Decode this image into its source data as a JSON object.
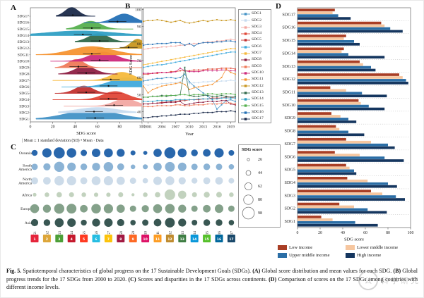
{
  "figure_title": "Fig. 5.",
  "panels": {
    "a": "A",
    "b": "B",
    "c": "C",
    "d": "D"
  },
  "sdg_labels": [
    "SDG1",
    "SDG2",
    "SDG3",
    "SDG4",
    "SDG5",
    "SDG6",
    "SDG7",
    "SDG8",
    "SDG9",
    "SDG10",
    "SDG11",
    "SDG12",
    "SDG13",
    "SDG14",
    "SDG15",
    "SDG16",
    "SDG17"
  ],
  "colors": {
    "sdg_palette": [
      "#4292c6",
      "#c6dbef",
      "#f2a8a2",
      "#e04838",
      "#c2312f",
      "#3fa9dc",
      "#f6b93b",
      "#8e2043",
      "#ef7a5a",
      "#ce2a7c",
      "#f59432",
      "#c99720",
      "#31694a",
      "#2f9fc4",
      "#56b04e",
      "#2470b5",
      "#1b2a4a"
    ],
    "sdg_icon_colors": [
      "#e5243b",
      "#dda63a",
      "#4c9f38",
      "#c5192d",
      "#ff3a21",
      "#26bde2",
      "#fcc30b",
      "#a21942",
      "#fd6925",
      "#dd1367",
      "#fd9d24",
      "#bf8b2e",
      "#3f7e44",
      "#0a97d9",
      "#56c02b",
      "#00689d",
      "#19486a"
    ],
    "continent_colors": [
      "#1e5fa8",
      "#85afd3",
      "#c9d9e8",
      "#bfd0ba",
      "#7d9c84",
      "#2e4e4a"
    ],
    "income_colors": [
      "#a93e25",
      "#f6c69f",
      "#2b6ea6",
      "#15365f"
    ]
  },
  "watermark": {
    "badge": "公",
    "text": "科学研究"
  },
  "caption_parts": [
    {
      "b": "Fig. 5."
    },
    {
      "t": " Spatiotemporal characteristics of global progress on the 17 Sustainable Development Goals (SDGs). "
    },
    {
      "b": "(A)"
    },
    {
      "t": " Global score distribution and mean values for each SDG. "
    },
    {
      "b": "(B)"
    },
    {
      "t": " Global progress trends for the 17 SDGs from 2000 to 2020. "
    },
    {
      "b": "(C)"
    },
    {
      "t": " Scores and disparities in the 17 SDGs across continents. "
    },
    {
      "b": "(D)"
    },
    {
      "t": " Comparison of scores on the 17 SDGs among countries with different income levels."
    }
  ],
  "chart_data": [
    {
      "panel": "A",
      "type": "area",
      "subtype": "ridgeline-density",
      "xlabel": "SDG score",
      "xticks": [
        0,
        20,
        40,
        60,
        80,
        100
      ],
      "xlim": [
        0,
        100
      ],
      "legend": "| Mean ± 1 standard deviation (SD)   • Mean   · Data",
      "series": [
        {
          "name": "SDG1",
          "mean": 58,
          "peak": 55,
          "lo": 5,
          "hi": 100,
          "width": 22,
          "amp": 1.0
        },
        {
          "name": "SDG2",
          "mean": 57,
          "peak": 60,
          "lo": 25,
          "hi": 95,
          "width": 18,
          "amp": 0.55
        },
        {
          "name": "SDG3",
          "mean": 75,
          "peak": 85,
          "lo": 30,
          "hi": 100,
          "width": 10,
          "amp": 0.8
        },
        {
          "name": "SDG4",
          "mean": 70,
          "peak": 76,
          "lo": 20,
          "hi": 100,
          "width": 11,
          "amp": 0.9
        },
        {
          "name": "SDG5",
          "mean": 50,
          "peak": 48,
          "lo": 22,
          "hi": 82,
          "width": 8,
          "amp": 0.8
        },
        {
          "name": "SDG6",
          "mean": 70,
          "peak": 86,
          "lo": 28,
          "hi": 100,
          "width": 14,
          "amp": 1.0
        },
        {
          "name": "SDG7",
          "mean": 72,
          "peak": 82,
          "lo": 20,
          "hi": 100,
          "width": 10,
          "amp": 0.9
        },
        {
          "name": "SDG8",
          "mean": 50,
          "peak": 49,
          "lo": 25,
          "hi": 78,
          "width": 9,
          "amp": 0.85
        },
        {
          "name": "SDG9",
          "mean": 43,
          "peak": 41,
          "lo": 22,
          "hi": 100,
          "width": 7,
          "amp": 0.9
        },
        {
          "name": "SDG10",
          "mean": 62,
          "peak": 65,
          "lo": 18,
          "hi": 100,
          "width": 12,
          "amp": 1.0
        },
        {
          "name": "SDG11",
          "mean": 55,
          "peak": 55,
          "lo": 5,
          "hi": 100,
          "width": 18,
          "amp": 0.9
        },
        {
          "name": "SDG12",
          "mean": 88,
          "peak": 96,
          "lo": 60,
          "hi": 100,
          "width": 6,
          "amp": 1.0
        },
        {
          "name": "SDG13",
          "mean": 62,
          "peak": 61,
          "lo": 40,
          "hi": 95,
          "width": 9,
          "amp": 0.9
        },
        {
          "name": "SDG14",
          "mean": 47,
          "peak": 45,
          "lo": 0,
          "hi": 100,
          "width": 30,
          "amp": 0.5
        },
        {
          "name": "SDG15",
          "mean": 55,
          "peak": 54,
          "lo": 32,
          "hi": 92,
          "width": 9,
          "amp": 0.85
        },
        {
          "name": "SDG16",
          "mean": 78,
          "peak": 84,
          "lo": 48,
          "hi": 100,
          "width": 9,
          "amp": 0.95
        },
        {
          "name": "SDG17",
          "mean": 38,
          "peak": 37,
          "lo": 23,
          "hi": 58,
          "width": 6,
          "amp": 0.95
        }
      ]
    },
    {
      "panel": "B",
      "type": "line",
      "xlabel": "Year",
      "ylabel": "SDG Score",
      "x": [
        2000,
        2001,
        2002,
        2003,
        2004,
        2005,
        2006,
        2007,
        2008,
        2009,
        2010,
        2011,
        2012,
        2013,
        2014,
        2015,
        2016,
        2017,
        2018,
        2019,
        2020
      ],
      "xticks": [
        2001,
        2004,
        2007,
        2010,
        2013,
        2016,
        2019
      ],
      "yticks": [
        40,
        50,
        60,
        70,
        80,
        90,
        100
      ],
      "ylim": [
        34,
        101
      ],
      "legend_position": "right",
      "series": [
        {
          "name": "SDG1",
          "values": [
            58,
            58.5,
            59,
            59.5,
            59.5,
            60,
            60,
            59.5,
            60,
            62,
            57.5,
            55,
            53,
            51,
            49,
            47,
            41.5,
            44,
            46.5,
            47,
            46
          ]
        },
        {
          "name": "SDG2",
          "values": [
            56,
            55.5,
            56,
            56,
            56.5,
            56.5,
            57,
            57,
            57.5,
            60,
            56.5,
            57,
            57,
            57.5,
            57.5,
            58,
            57.5,
            58,
            58,
            58.5,
            58
          ]
        },
        {
          "name": "SDG3",
          "values": [
            76.5,
            77,
            77.5,
            77.5,
            78,
            78,
            78.5,
            78.5,
            79,
            79,
            79.5,
            80,
            80,
            80.5,
            81,
            81,
            81.5,
            81.5,
            82,
            82.5,
            82
          ]
        },
        {
          "name": "SDG4",
          "values": [
            62,
            62,
            62.5,
            62.5,
            63,
            63,
            63.5,
            63.5,
            64,
            64,
            64,
            64.5,
            64.5,
            64.5,
            65,
            65,
            65,
            65.5,
            65.5,
            65.5,
            65
          ]
        },
        {
          "name": "SDG5",
          "values": [
            44.5,
            44.5,
            45,
            45,
            45.5,
            45.5,
            46,
            46,
            46.5,
            46.5,
            47,
            47,
            47,
            47.5,
            47.5,
            48,
            48,
            48,
            48.5,
            48.5,
            48
          ]
        },
        {
          "name": "SDG6",
          "values": [
            66,
            66.5,
            67,
            67.5,
            67.5,
            68,
            68.5,
            69,
            69.5,
            70,
            70.5,
            71,
            71.5,
            72,
            72.5,
            73,
            73.5,
            74,
            74.5,
            75,
            75
          ]
        },
        {
          "name": "SDG7",
          "values": [
            67.5,
            68,
            68.5,
            69,
            69.5,
            70,
            70.5,
            71,
            71.5,
            72,
            72.5,
            73,
            73.5,
            74,
            74.5,
            75,
            75.5,
            76,
            76.5,
            77,
            77
          ]
        },
        {
          "name": "SDG8",
          "values": [
            44.5,
            44.5,
            45,
            45,
            45,
            45.5,
            45.5,
            45.5,
            46,
            44,
            44.5,
            45,
            45.5,
            45.5,
            46,
            46,
            46,
            46.5,
            46.5,
            44.5,
            44
          ]
        },
        {
          "name": "SDG9",
          "values": [
            43,
            43,
            43,
            43.5,
            43.5,
            43.5,
            43.5,
            44,
            44,
            43.5,
            43.5,
            44,
            44,
            44,
            44.5,
            44.5,
            44.5,
            45,
            45,
            45,
            44.5
          ]
        },
        {
          "name": "SDG10",
          "values": [
            62.5,
            62.5,
            62.5,
            63,
            63,
            63,
            63,
            63.5,
            65.5,
            64,
            63.5,
            63.5,
            63.5,
            64,
            64,
            64,
            64,
            64.5,
            64.5,
            64,
            64
          ]
        },
        {
          "name": "SDG11",
          "values": [
            55,
            51,
            53,
            54,
            55,
            55.5,
            56,
            56.5,
            57,
            56,
            53,
            54,
            54.5,
            55,
            55.5,
            56,
            58,
            60,
            65,
            63,
            62
          ]
        },
        {
          "name": "SDG12",
          "values": [
            93,
            93.5,
            93.5,
            94,
            93.5,
            93,
            92.5,
            93,
            93.5,
            92.5,
            92,
            92.5,
            93,
            93.5,
            93,
            93.5,
            94,
            93.5,
            93.5,
            94,
            93.5
          ]
        },
        {
          "name": "SDG13",
          "values": [
            48.5,
            48.5,
            49,
            49,
            49.5,
            49,
            49.5,
            49.5,
            50,
            66,
            49.5,
            49,
            49,
            49.5,
            49.5,
            49,
            49,
            49.5,
            49,
            48.5,
            49
          ]
        },
        {
          "name": "SDG14",
          "values": [
            46,
            46,
            46,
            46.5,
            46.5,
            46.5,
            46.5,
            47,
            47,
            47,
            47,
            47,
            47.5,
            47.5,
            47.5,
            47.5,
            47.5,
            48,
            48,
            48,
            48
          ]
        },
        {
          "name": "SDG15",
          "values": [
            48.5,
            48.5,
            49,
            49,
            49,
            49.5,
            49.5,
            49.5,
            50,
            50,
            49.5,
            50,
            50,
            50,
            50.5,
            50.5,
            50,
            50.5,
            50.5,
            50.5,
            50
          ]
        },
        {
          "name": "SDG16",
          "values": [
            79,
            79.5,
            79.5,
            80,
            80,
            80,
            80.5,
            80.5,
            80.5,
            79,
            80,
            78.5,
            80,
            80.5,
            80.5,
            80.5,
            81,
            81,
            81.5,
            81.5,
            81
          ]
        },
        {
          "name": "SDG17",
          "values": [
            36.5,
            36.5,
            37,
            37,
            37.5,
            37.5,
            38,
            38,
            38.5,
            38.5,
            38.5,
            39,
            39,
            39.5,
            39.5,
            39.5,
            40,
            40,
            40,
            40.5,
            40
          ]
        }
      ]
    },
    {
      "panel": "C",
      "type": "bubble",
      "legend_title": "SDG score",
      "legend_sizes": [
        26,
        44,
        62,
        80,
        98
      ],
      "rows": [
        "Oceania",
        "South America",
        "North America",
        "Africa",
        "Europe",
        "Asia"
      ],
      "columns": [
        "SDG1",
        "SDG2",
        "SDG3",
        "SDG4",
        "SDG5",
        "SDG6",
        "SDG7",
        "SDG8",
        "SDG9",
        "SDG10",
        "SDG11",
        "SDG12",
        "SDG13",
        "SDG14",
        "SDG15",
        "SDG16",
        "SDG17"
      ],
      "values": [
        [
          52,
          78,
          92,
          80,
          55,
          72,
          75,
          68,
          45,
          38,
          70,
          92,
          75,
          58,
          65,
          78,
          50
        ],
        [
          55,
          62,
          85,
          72,
          58,
          68,
          80,
          60,
          42,
          45,
          70,
          82,
          72,
          55,
          58,
          55,
          48
        ],
        [
          60,
          65,
          80,
          78,
          60,
          75,
          78,
          70,
          55,
          48,
          72,
          75,
          62,
          52,
          60,
          65,
          50
        ],
        [
          35,
          42,
          48,
          45,
          42,
          40,
          40,
          45,
          30,
          42,
          48,
          88,
          70,
          45,
          52,
          50,
          42
        ],
        [
          75,
          68,
          85,
          82,
          65,
          80,
          78,
          70,
          55,
          62,
          75,
          80,
          68,
          55,
          65,
          72,
          55
        ],
        [
          62,
          58,
          75,
          72,
          52,
          68,
          72,
          62,
          48,
          55,
          65,
          82,
          68,
          50,
          58,
          58,
          48
        ]
      ]
    },
    {
      "panel": "D",
      "type": "bar",
      "orientation": "horizontal",
      "xlabel": "SDG score",
      "xticks": [
        0,
        20,
        40,
        60,
        80,
        100
      ],
      "xlim": [
        0,
        100
      ],
      "categories": [
        "SDG1",
        "SDG2",
        "SDG3",
        "SDG4",
        "SDG5",
        "SDG6",
        "SDG7",
        "SDG8",
        "SDG9",
        "SDG10",
        "SDG11",
        "SDG12",
        "SDG13",
        "SDG14",
        "SDG15",
        "SDG16",
        "SDG17"
      ],
      "series": [
        {
          "name": "Low income",
          "values": [
            21,
            37,
            65,
            44,
            43,
            33,
            43,
            34,
            30,
            54,
            29,
            90,
            55,
            41,
            43,
            74,
            33
          ]
        },
        {
          "name": "Lower middle income",
          "values": [
            31,
            50,
            75,
            62,
            46,
            55,
            65,
            37,
            38,
            56,
            43,
            93,
            58,
            39,
            41,
            77,
            31
          ]
        },
        {
          "name": "Upper middle income",
          "values": [
            51,
            62,
            87,
            80,
            50,
            77,
            80,
            45,
            45,
            63,
            57,
            96,
            65,
            45,
            50,
            82,
            36
          ]
        },
        {
          "name": "High income",
          "values": [
            71,
            79,
            95,
            88,
            52,
            94,
            86,
            59,
            52,
            77,
            79,
            98,
            69,
            77,
            55,
            93,
            47
          ]
        }
      ]
    }
  ]
}
